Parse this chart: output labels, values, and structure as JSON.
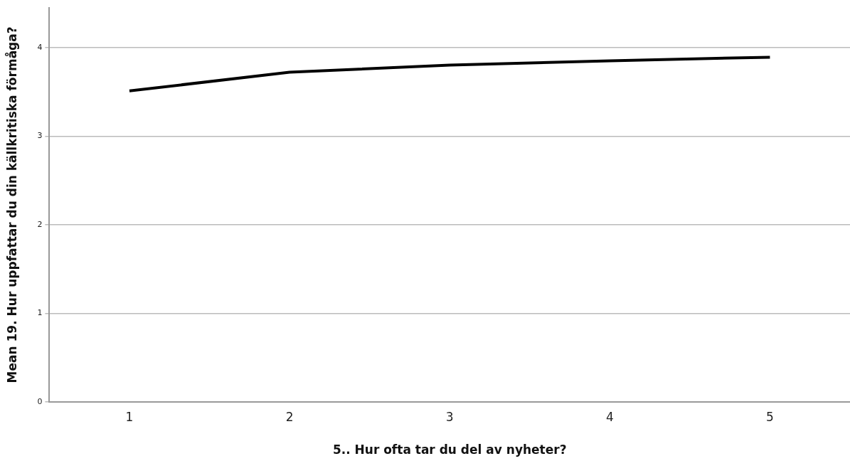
{
  "chart_data": {
    "type": "line",
    "xlabel": "5.. Hur ofta tar du del av nyheter?",
    "ylabel": "Mean 19. Hur uppfattar du din källkritiska förmåga?",
    "categories": [
      "1",
      "2",
      "3",
      "4",
      "5"
    ],
    "series": [
      {
        "color": "#000000",
        "values": [
          3.51,
          3.72,
          3.8,
          3.85,
          3.89
        ]
      }
    ],
    "ylim": [
      0,
      4.45
    ],
    "yticks": [
      0,
      1,
      2,
      3,
      4
    ],
    "grid": "y",
    "legend": false,
    "marker": "none",
    "line_style": "solid"
  }
}
